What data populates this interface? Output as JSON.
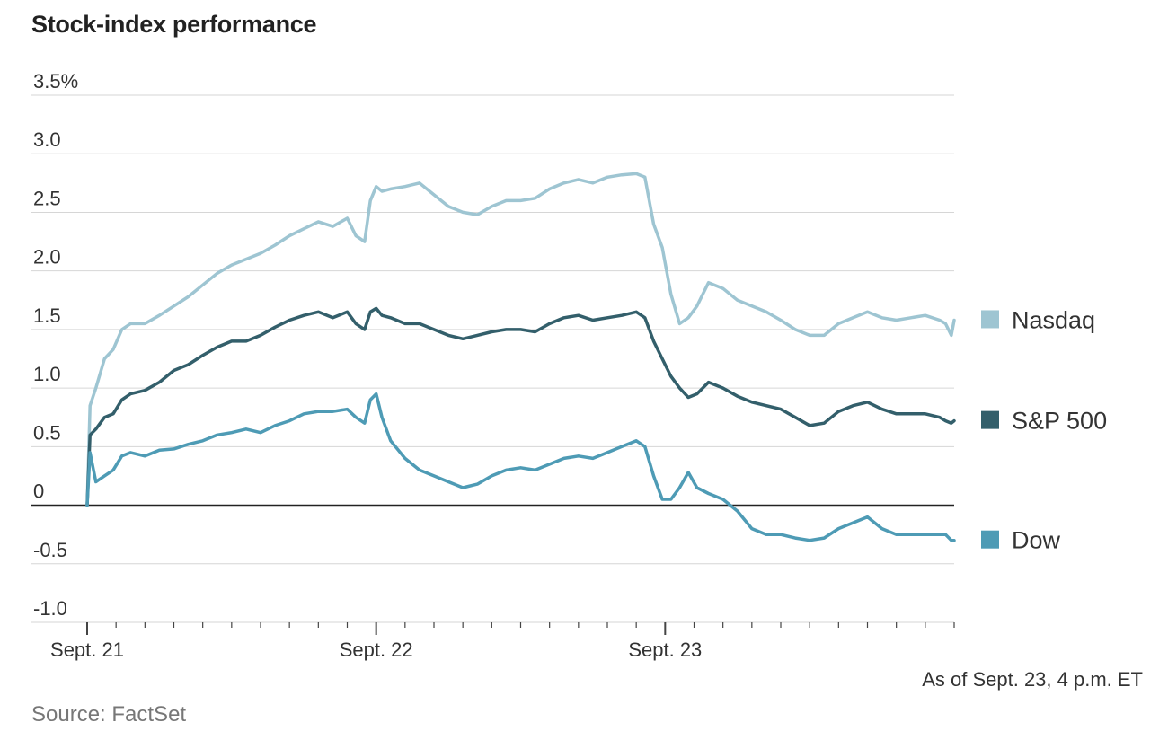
{
  "chart_data": {
    "type": "line",
    "title": "Stock-index performance",
    "xlabel": "",
    "ylabel": "",
    "y_unit": "%",
    "ylim": [
      -1.0,
      3.5
    ],
    "yticks": [
      {
        "value": 3.5,
        "label": "3.5%"
      },
      {
        "value": 3.0,
        "label": "3.0"
      },
      {
        "value": 2.5,
        "label": "2.5"
      },
      {
        "value": 2.0,
        "label": "2.0"
      },
      {
        "value": 1.5,
        "label": "1.5"
      },
      {
        "value": 1.0,
        "label": "1.0"
      },
      {
        "value": 0.5,
        "label": "0.5"
      },
      {
        "value": 0,
        "label": "0"
      },
      {
        "value": -0.5,
        "label": "-0.5"
      },
      {
        "value": -1.0,
        "label": "-1.0"
      }
    ],
    "x_domain": [
      0,
      3
    ],
    "xticks": [
      {
        "value": 0,
        "label": "Sept. 21"
      },
      {
        "value": 1,
        "label": "Sept. 22"
      },
      {
        "value": 2,
        "label": "Sept. 23"
      }
    ],
    "grid": true,
    "legend_position": "right",
    "series": [
      {
        "name": "Nasdaq",
        "color": "#9ec5d2",
        "x": [
          0,
          0.01,
          0.03,
          0.06,
          0.09,
          0.12,
          0.15,
          0.2,
          0.25,
          0.3,
          0.35,
          0.4,
          0.45,
          0.5,
          0.55,
          0.6,
          0.65,
          0.7,
          0.75,
          0.8,
          0.85,
          0.9,
          0.93,
          0.96,
          0.98,
          1.0,
          1.02,
          1.05,
          1.1,
          1.15,
          1.2,
          1.25,
          1.3,
          1.35,
          1.4,
          1.45,
          1.5,
          1.55,
          1.6,
          1.65,
          1.7,
          1.75,
          1.8,
          1.85,
          1.9,
          1.93,
          1.96,
          1.99,
          2.02,
          2.05,
          2.08,
          2.11,
          2.15,
          2.2,
          2.25,
          2.3,
          2.35,
          2.4,
          2.45,
          2.5,
          2.55,
          2.6,
          2.65,
          2.7,
          2.75,
          2.8,
          2.85,
          2.9,
          2.95,
          2.97,
          2.99,
          3.0
        ],
        "y": [
          0,
          0.85,
          1.0,
          1.25,
          1.33,
          1.5,
          1.55,
          1.55,
          1.62,
          1.7,
          1.78,
          1.88,
          1.98,
          2.05,
          2.1,
          2.15,
          2.22,
          2.3,
          2.36,
          2.42,
          2.38,
          2.45,
          2.3,
          2.25,
          2.6,
          2.72,
          2.68,
          2.7,
          2.72,
          2.75,
          2.65,
          2.55,
          2.5,
          2.48,
          2.55,
          2.6,
          2.6,
          2.62,
          2.7,
          2.75,
          2.78,
          2.75,
          2.8,
          2.82,
          2.83,
          2.8,
          2.4,
          2.2,
          1.8,
          1.55,
          1.6,
          1.7,
          1.9,
          1.85,
          1.75,
          1.7,
          1.65,
          1.58,
          1.5,
          1.45,
          1.45,
          1.55,
          1.6,
          1.65,
          1.6,
          1.58,
          1.6,
          1.62,
          1.58,
          1.55,
          1.45,
          1.58
        ]
      },
      {
        "name": "S&P 500",
        "color": "#335f6b",
        "x": [
          0,
          0.01,
          0.03,
          0.06,
          0.09,
          0.12,
          0.15,
          0.2,
          0.25,
          0.3,
          0.35,
          0.4,
          0.45,
          0.5,
          0.55,
          0.6,
          0.65,
          0.7,
          0.75,
          0.8,
          0.85,
          0.9,
          0.93,
          0.96,
          0.98,
          1.0,
          1.02,
          1.05,
          1.1,
          1.15,
          1.2,
          1.25,
          1.3,
          1.35,
          1.4,
          1.45,
          1.5,
          1.55,
          1.6,
          1.65,
          1.7,
          1.75,
          1.8,
          1.85,
          1.9,
          1.93,
          1.96,
          1.99,
          2.02,
          2.05,
          2.08,
          2.11,
          2.15,
          2.2,
          2.25,
          2.3,
          2.35,
          2.4,
          2.45,
          2.5,
          2.55,
          2.6,
          2.65,
          2.7,
          2.75,
          2.8,
          2.85,
          2.9,
          2.95,
          2.97,
          2.99,
          3.0
        ],
        "y": [
          0,
          0.6,
          0.65,
          0.75,
          0.78,
          0.9,
          0.95,
          0.98,
          1.05,
          1.15,
          1.2,
          1.28,
          1.35,
          1.4,
          1.4,
          1.45,
          1.52,
          1.58,
          1.62,
          1.65,
          1.6,
          1.65,
          1.55,
          1.5,
          1.65,
          1.68,
          1.62,
          1.6,
          1.55,
          1.55,
          1.5,
          1.45,
          1.42,
          1.45,
          1.48,
          1.5,
          1.5,
          1.48,
          1.55,
          1.6,
          1.62,
          1.58,
          1.6,
          1.62,
          1.65,
          1.6,
          1.4,
          1.25,
          1.1,
          1.0,
          0.92,
          0.95,
          1.05,
          1.0,
          0.93,
          0.88,
          0.85,
          0.82,
          0.75,
          0.68,
          0.7,
          0.8,
          0.85,
          0.88,
          0.82,
          0.78,
          0.78,
          0.78,
          0.75,
          0.72,
          0.7,
          0.72
        ]
      },
      {
        "name": "Dow",
        "color": "#4e9bb5",
        "x": [
          0,
          0.01,
          0.03,
          0.06,
          0.09,
          0.12,
          0.15,
          0.2,
          0.25,
          0.3,
          0.35,
          0.4,
          0.45,
          0.5,
          0.55,
          0.6,
          0.65,
          0.7,
          0.75,
          0.8,
          0.85,
          0.9,
          0.93,
          0.96,
          0.98,
          1.0,
          1.02,
          1.05,
          1.1,
          1.15,
          1.2,
          1.25,
          1.3,
          1.35,
          1.4,
          1.45,
          1.5,
          1.55,
          1.6,
          1.65,
          1.7,
          1.75,
          1.8,
          1.85,
          1.9,
          1.93,
          1.96,
          1.99,
          2.02,
          2.05,
          2.08,
          2.11,
          2.15,
          2.2,
          2.25,
          2.3,
          2.35,
          2.4,
          2.45,
          2.5,
          2.55,
          2.6,
          2.65,
          2.7,
          2.75,
          2.8,
          2.85,
          2.9,
          2.95,
          2.97,
          2.99,
          3.0
        ],
        "y": [
          0,
          0.45,
          0.2,
          0.25,
          0.3,
          0.42,
          0.45,
          0.42,
          0.47,
          0.48,
          0.52,
          0.55,
          0.6,
          0.62,
          0.65,
          0.62,
          0.68,
          0.72,
          0.78,
          0.8,
          0.8,
          0.82,
          0.75,
          0.7,
          0.9,
          0.95,
          0.75,
          0.55,
          0.4,
          0.3,
          0.25,
          0.2,
          0.15,
          0.18,
          0.25,
          0.3,
          0.32,
          0.3,
          0.35,
          0.4,
          0.42,
          0.4,
          0.45,
          0.5,
          0.55,
          0.5,
          0.25,
          0.05,
          0.05,
          0.15,
          0.28,
          0.15,
          0.1,
          0.05,
          -0.05,
          -0.2,
          -0.25,
          -0.25,
          -0.28,
          -0.3,
          -0.28,
          -0.2,
          -0.15,
          -0.1,
          -0.2,
          -0.25,
          -0.25,
          -0.25,
          -0.25,
          -0.25,
          -0.3,
          -0.3
        ]
      }
    ]
  },
  "note": "As of Sept. 23, 4 p.m. ET",
  "source": "Source: FactSet"
}
